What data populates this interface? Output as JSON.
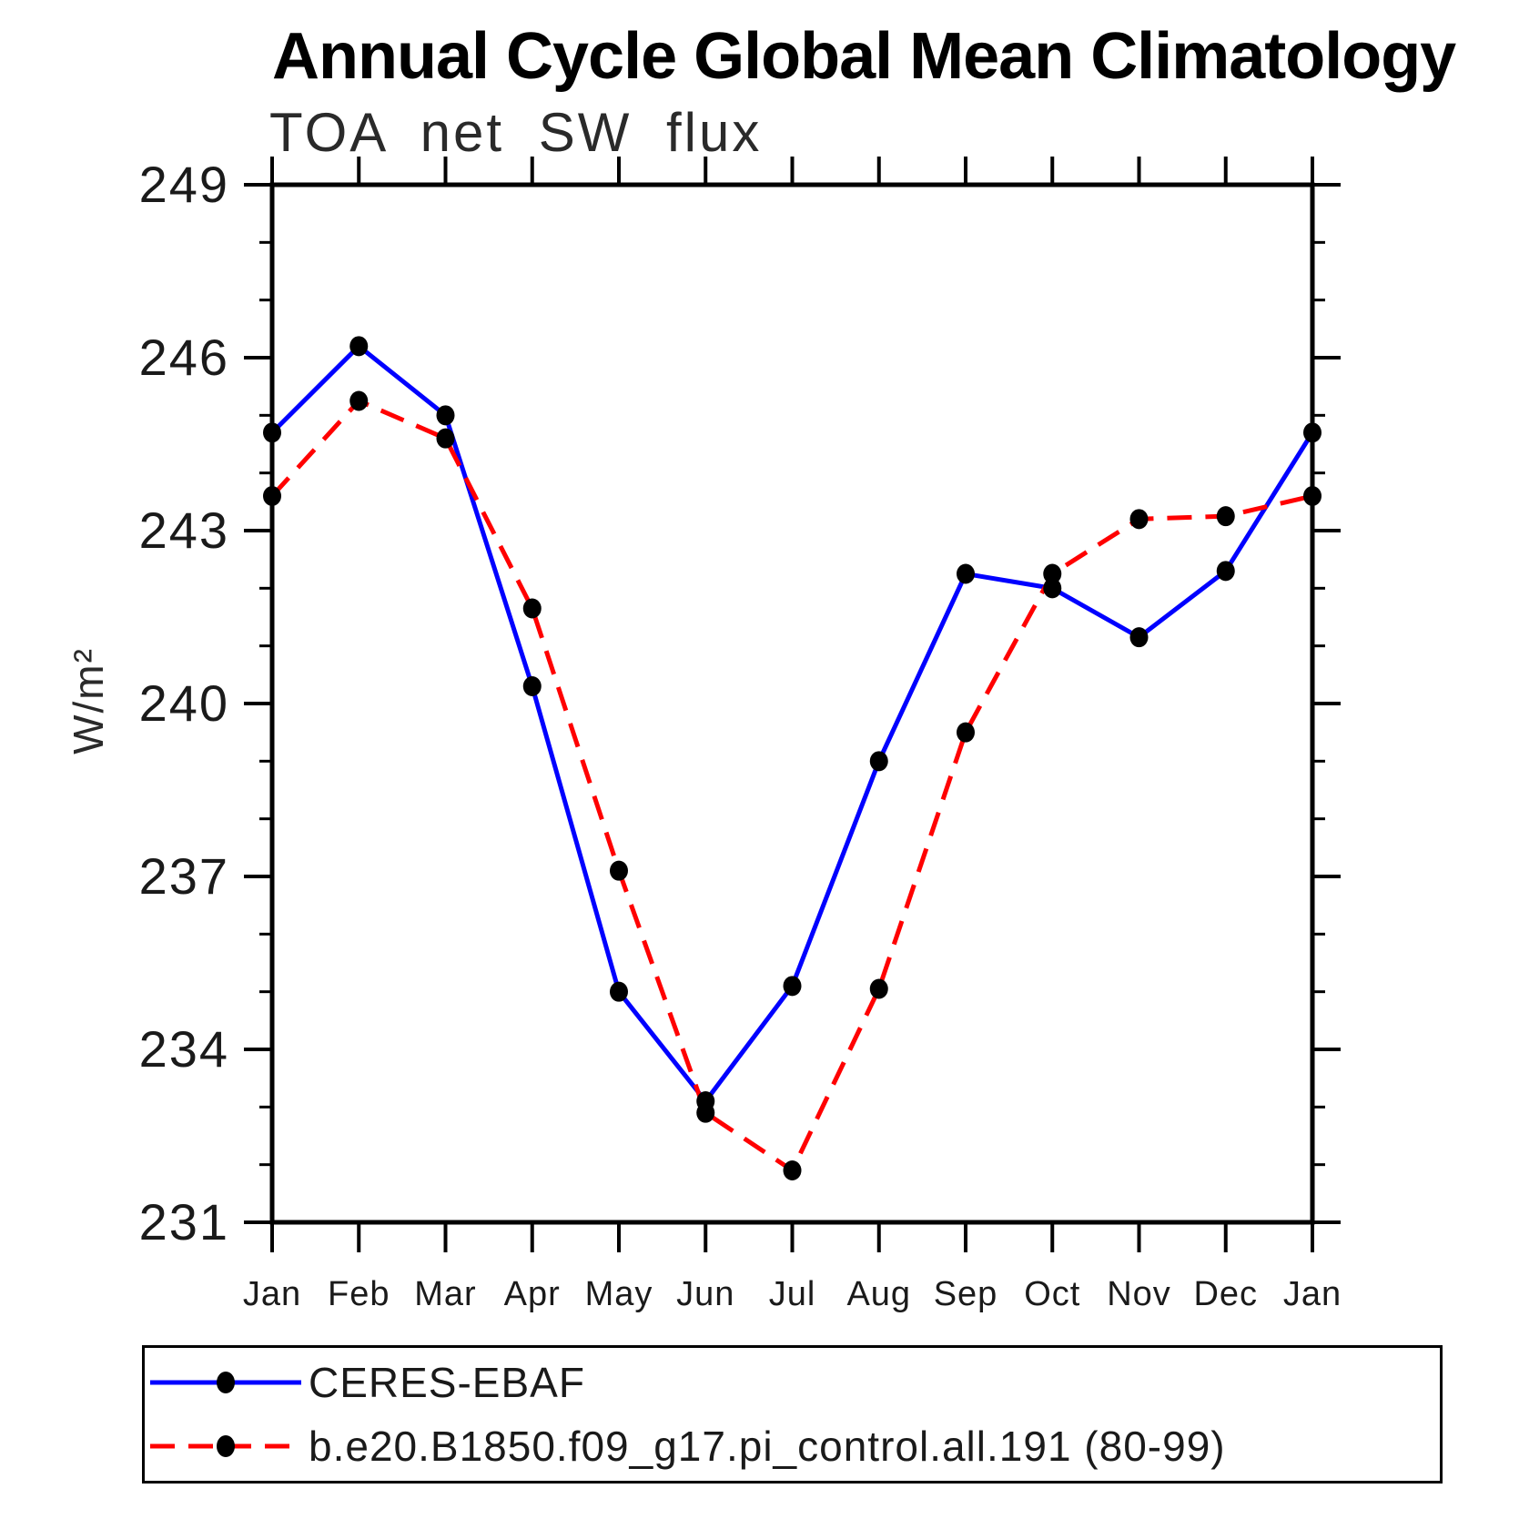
{
  "chart_data": {
    "type": "line",
    "title": "Annual Cycle Global Mean Climatology",
    "subtitle": "TOA net SW flux",
    "ylabel": "W/m²",
    "xlabel": "",
    "categories": [
      "Jan",
      "Feb",
      "Mar",
      "Apr",
      "May",
      "Jun",
      "Jul",
      "Aug",
      "Sep",
      "Oct",
      "Nov",
      "Dec",
      "Jan"
    ],
    "ylim": [
      231,
      249
    ],
    "ytick_major": [
      249,
      246,
      243,
      240,
      237,
      234,
      231
    ],
    "ytick_minor_interval": 1,
    "grid": false,
    "legend_position": "bottom-box",
    "series": [
      {
        "name": "CERES-EBAF",
        "line_style": "solid",
        "color": "#0000ff",
        "marker": "filled-circle",
        "marker_color": "#000000",
        "values": [
          244.7,
          246.2,
          245.0,
          240.3,
          235.0,
          233.1,
          235.1,
          239.0,
          242.25,
          242.0,
          241.15,
          242.3,
          244.7
        ]
      },
      {
        "name": "b.e20.B1850.f09_g17.pi_control.all.191 (80-99)",
        "line_style": "dashed",
        "color": "#ff0000",
        "marker": "filled-circle",
        "marker_color": "#000000",
        "values": [
          243.6,
          245.25,
          244.6,
          241.65,
          237.1,
          232.9,
          231.9,
          235.05,
          239.5,
          242.25,
          243.2,
          243.25,
          243.6
        ]
      }
    ]
  }
}
